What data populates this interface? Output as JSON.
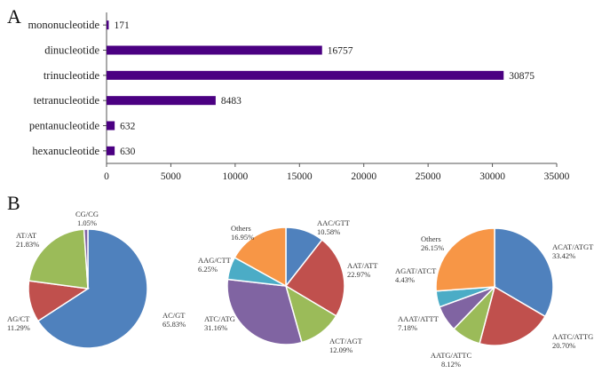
{
  "panels": {
    "a": "A",
    "b": "B"
  },
  "chart_data": [
    {
      "type": "bar",
      "orientation": "horizontal",
      "categories": [
        "mononucleotide",
        "dinucleotide",
        "trinucleotide",
        "tetranucleotide",
        "pentanucleotide",
        "hexanucleotide"
      ],
      "values": [
        171,
        16757,
        30875,
        8483,
        632,
        630
      ],
      "xlim": [
        0,
        35000
      ],
      "xticks": [
        "0",
        "5000",
        "10000",
        "15000",
        "20000",
        "25000",
        "30000",
        "35000"
      ],
      "color": "#4b0082"
    },
    {
      "type": "pie",
      "slices": [
        {
          "label": "AC/GT",
          "pct": "65.83%",
          "value": 65.83,
          "color": "#4f81bd"
        },
        {
          "label": "AG/CT",
          "pct": "11.29%",
          "value": 11.29,
          "color": "#c0504d"
        },
        {
          "label": "AT/AT",
          "pct": "21.83%",
          "value": 21.83,
          "color": "#9bbb59"
        },
        {
          "label": "CG/CG",
          "pct": "1.05%",
          "value": 1.05,
          "color": "#8064a2"
        }
      ]
    },
    {
      "type": "pie",
      "slices": [
        {
          "label": "AAC/GTT",
          "pct": "10.58%",
          "value": 10.58,
          "color": "#4f81bd"
        },
        {
          "label": "AAT/ATT",
          "pct": "22.97%",
          "value": 22.97,
          "color": "#c0504d"
        },
        {
          "label": "ACT/AGT",
          "pct": "12.09%",
          "value": 12.09,
          "color": "#9bbb59"
        },
        {
          "label": "ATC/ATG",
          "pct": "31.16%",
          "value": 31.16,
          "color": "#8064a2"
        },
        {
          "label": "AAG/CTT",
          "pct": "6.25%",
          "value": 6.25,
          "color": "#4bacc6"
        },
        {
          "label": "Others",
          "pct": "16.95%",
          "value": 16.95,
          "color": "#f79646"
        }
      ]
    },
    {
      "type": "pie",
      "slices": [
        {
          "label": "ACAT/ATGT",
          "pct": "33.42%",
          "value": 33.42,
          "color": "#4f81bd"
        },
        {
          "label": "AATC/ATTG",
          "pct": "20.70%",
          "value": 20.7,
          "color": "#c0504d"
        },
        {
          "label": "AATG/ATTC",
          "pct": "8.12%",
          "value": 8.12,
          "color": "#9bbb59"
        },
        {
          "label": "AAAT/ATTT",
          "pct": "7.18%",
          "value": 7.18,
          "color": "#8064a2"
        },
        {
          "label": "AGAT/ATCT",
          "pct": "4.43%",
          "value": 4.43,
          "color": "#4bacc6"
        },
        {
          "label": "Others",
          "pct": "26.15%",
          "value": 26.15,
          "color": "#f79646"
        }
      ]
    }
  ]
}
